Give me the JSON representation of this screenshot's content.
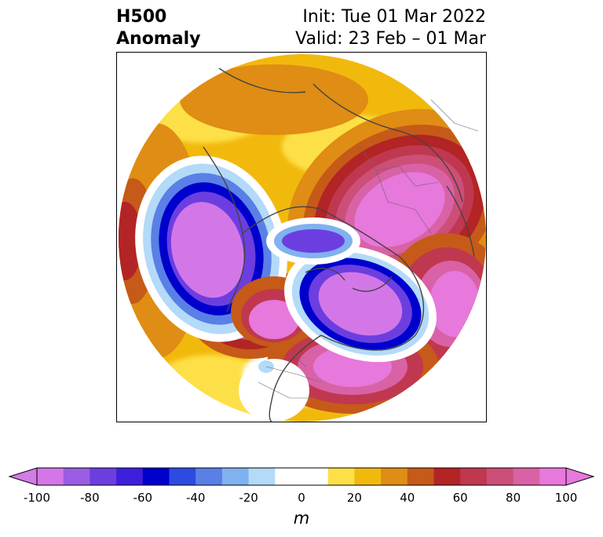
{
  "header": {
    "title_line1": "H500",
    "title_line2": "Anomaly",
    "init_text": "Init: Tue 01 Mar 2022",
    "valid_text": "Valid: 23 Feb – 01 Mar"
  },
  "map": {
    "projection": "north-polar-stereographic",
    "field": "500 hPa geopotential height anomaly"
  },
  "colorbar": {
    "units": "m",
    "tick_labels": [
      "-100",
      "-80",
      "-60",
      "-40",
      "-20",
      "0",
      "20",
      "40",
      "60",
      "80",
      "100"
    ],
    "under_color": "#d37be6",
    "over_color": "#e778dc",
    "colors": [
      "#d377e8",
      "#9b5de3",
      "#6c3ee0",
      "#3d1fdc",
      "#0000cd",
      "#2e4be0",
      "#5a7fe6",
      "#80b1f0",
      "#b3daf8",
      "#ffffff",
      "#ffffff",
      "#fde046",
      "#f2b90d",
      "#df8d14",
      "#c65a18",
      "#b22425",
      "#c0384f",
      "#cc4f78",
      "#d962a6",
      "#e778dc"
    ]
  }
}
